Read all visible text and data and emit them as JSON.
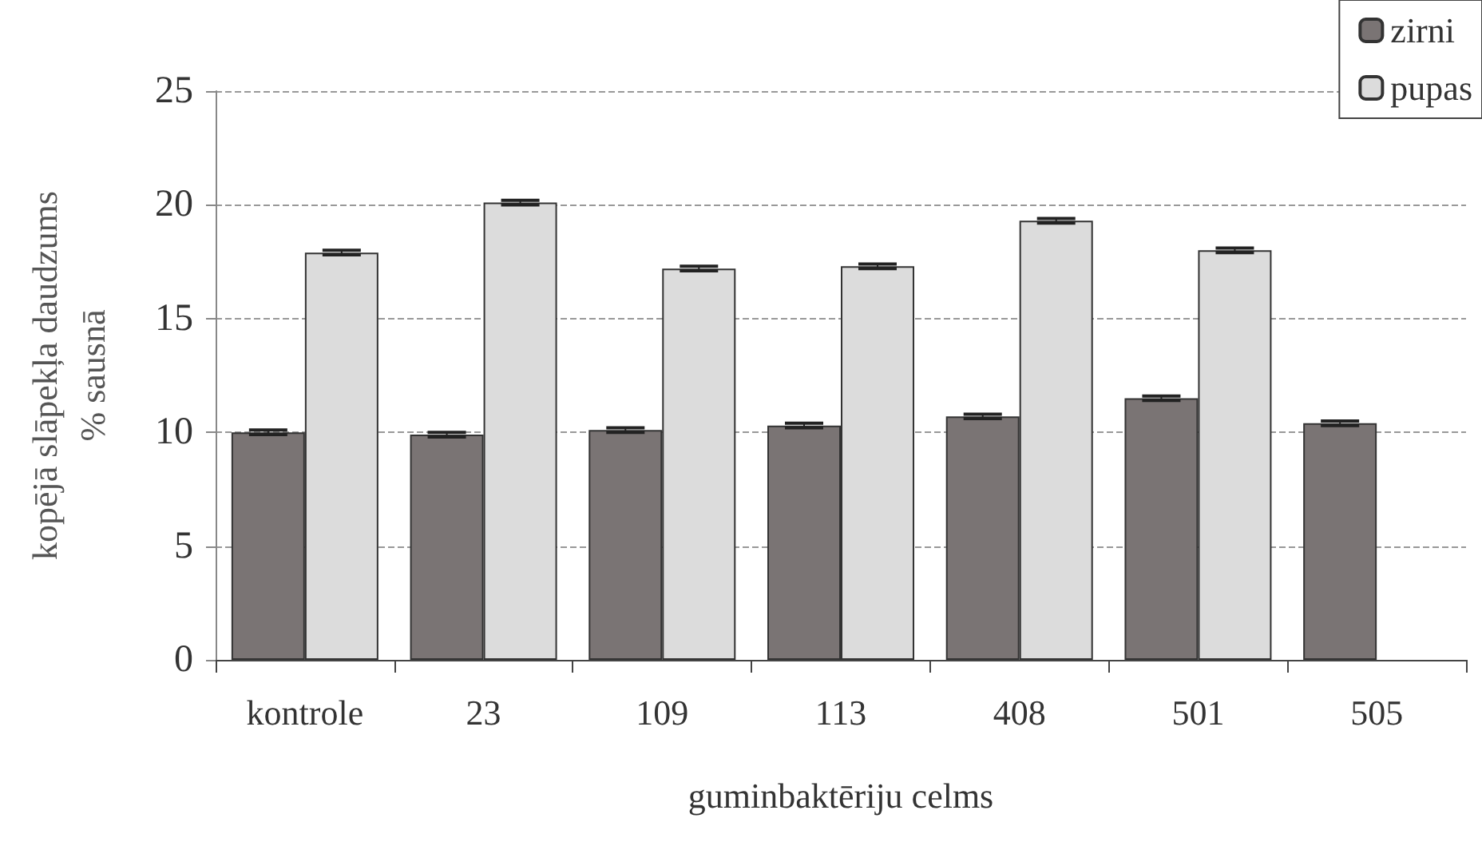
{
  "chart_data": {
    "type": "bar",
    "xlabel": "guminbaktēriju celms",
    "ylabel": "kopējā slāpekļa daudzums\n% sausnā",
    "categories": [
      "kontrole",
      "23",
      "109",
      "113",
      "408",
      "501",
      "505"
    ],
    "series": [
      {
        "name": "zirni",
        "color": "#7a7474",
        "values": [
          10.0,
          9.9,
          10.1,
          10.3,
          10.7,
          11.5,
          10.4
        ],
        "errors": [
          0.1,
          0.1,
          0.1,
          0.1,
          0.1,
          0.1,
          0.1
        ]
      },
      {
        "name": "pupas",
        "color": "#dcdcdc",
        "values": [
          17.9,
          20.1,
          17.2,
          17.3,
          19.3,
          18.0,
          null
        ],
        "errors": [
          0.1,
          0.1,
          0.1,
          0.1,
          0.1,
          0.1,
          null
        ]
      }
    ],
    "ylim": [
      0,
      25
    ],
    "yticks": [
      0,
      5,
      10,
      15,
      20,
      25
    ],
    "grid": "y",
    "legend": "top right"
  }
}
